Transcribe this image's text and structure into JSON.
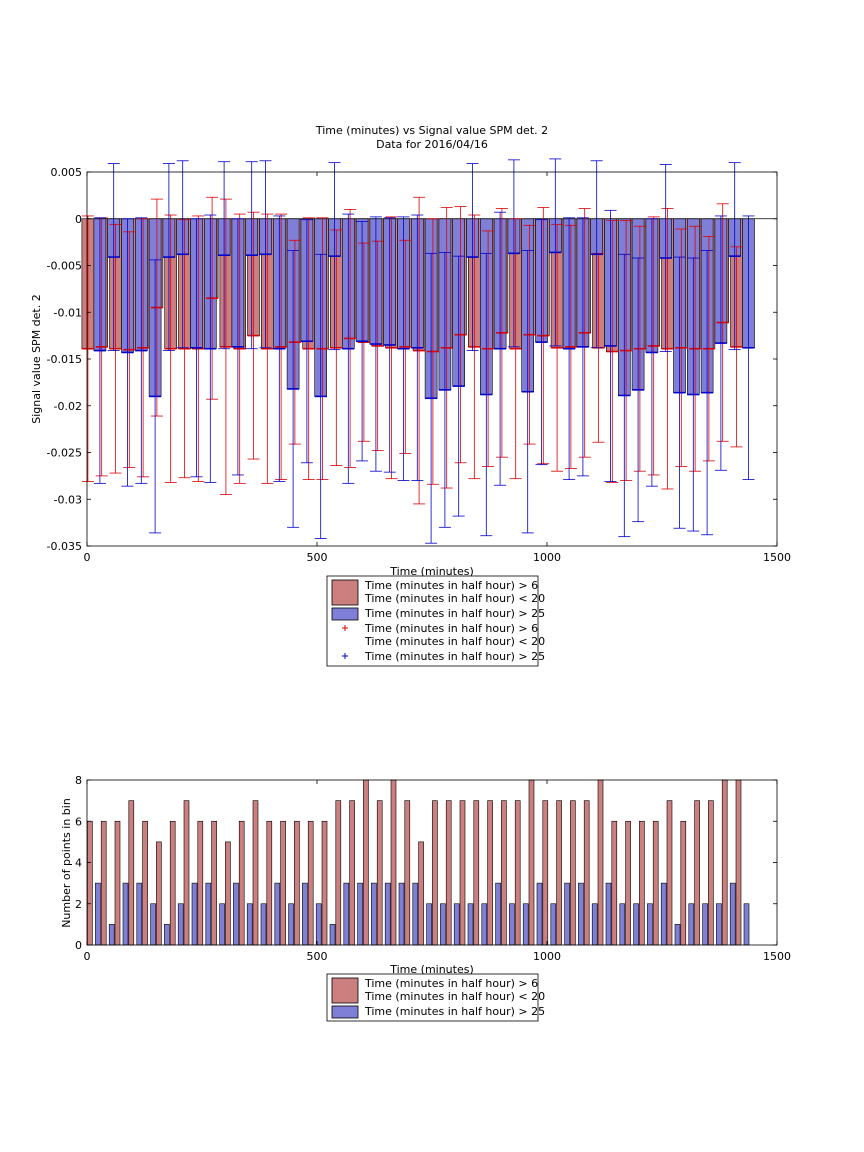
{
  "chart_data": [
    {
      "type": "bar",
      "title": "Time (minutes) vs Signal value SPM det. 2",
      "subtitle": "Data for 2016/04/16",
      "xlabel": "Time (minutes)",
      "ylabel": "Signal value SPM det. 2",
      "xlim": [
        0,
        1500
      ],
      "ylim": [
        -0.035,
        0.005
      ],
      "xticks": [
        0,
        500,
        1000,
        1500
      ],
      "yticks": [
        -0.035,
        -0.03,
        -0.025,
        -0.02,
        -0.015,
        -0.01,
        -0.005,
        0,
        0.005
      ],
      "xtick_labels": [
        "0",
        "500",
        "1000",
        "1500"
      ],
      "ytick_labels": [
        "-0.035",
        "-0.03",
        "-0.025",
        "-0.02",
        "-0.015",
        "-0.01",
        "-0.005",
        "0",
        "0.005"
      ],
      "x": [
        15,
        45,
        75,
        105,
        135,
        165,
        195,
        225,
        255,
        285,
        315,
        345,
        375,
        405,
        435,
        465,
        495,
        525,
        555,
        585,
        615,
        645,
        675,
        705,
        735,
        765,
        795,
        825,
        855,
        885,
        915,
        945,
        975,
        1005,
        1035,
        1065,
        1095,
        1125,
        1155,
        1185,
        1215,
        1245,
        1275,
        1305,
        1335,
        1365,
        1395,
        1425
      ],
      "series": [
        {
          "name": "Time (minutes in half hour) > 6\nTime (minutes in half hour) < 20",
          "color": "#cc7f7f",
          "values": [
            -0.0139,
            -0.0137,
            -0.0139,
            -0.014,
            -0.0138,
            -0.0095,
            -0.0139,
            -0.0139,
            -0.0139,
            -0.0085,
            -0.0137,
            -0.0139,
            -0.0125,
            -0.0139,
            -0.0137,
            -0.0132,
            -0.0139,
            -0.0139,
            -0.0138,
            -0.0128,
            -0.0132,
            -0.0136,
            -0.0138,
            -0.0137,
            -0.0141,
            -0.0142,
            -0.0138,
            -0.0124,
            -0.0137,
            -0.0139,
            -0.0122,
            -0.0139,
            -0.0124,
            -0.0125,
            -0.0138,
            -0.0137,
            -0.0122,
            -0.0138,
            -0.0142,
            -0.0141,
            -0.0139,
            -0.0136,
            -0.0139,
            -0.0138,
            -0.0139,
            -0.0139,
            -0.0111,
            -0.0137
          ],
          "error": [
            0.0142,
            0.0138,
            0.0133,
            0.0126,
            0.0138,
            0.0116,
            0.0143,
            0.0138,
            0.0142,
            0.0108,
            0.0158,
            0.0144,
            0.0132,
            0.0144,
            0.0142,
            0.0109,
            0.014,
            0.014,
            0.0126,
            0.0138,
            0.0106,
            0.0112,
            0.014,
            0.0114,
            0.0164,
            0.0142,
            0.015,
            0.0137,
            0.0141,
            0.0126,
            0.0133,
            0.0139,
            0.0117,
            0.0137,
            0.0132,
            0.013,
            0.0133,
            0.0101,
            0.014,
            0.0139,
            0.0131,
            0.0138,
            0.015,
            0.0127,
            0.0131,
            0.012,
            0.0127,
            0.0107
          ]
        },
        {
          "name": "Time (minutes in half hour) > 25",
          "color": "#7f7fd8",
          "values": [
            -0.0141,
            -0.0041,
            -0.0143,
            -0.0141,
            -0.019,
            -0.0041,
            -0.0038,
            -0.0138,
            -0.0139,
            -0.0039,
            -0.0137,
            -0.0039,
            -0.0038,
            -0.0139,
            -0.0182,
            -0.0131,
            -0.019,
            -0.004,
            -0.0139,
            -0.0131,
            -0.0134,
            -0.0135,
            -0.0139,
            -0.0138,
            -0.0192,
            -0.0183,
            -0.0179,
            -0.0041,
            -0.0188,
            -0.0139,
            -0.0037,
            -0.0185,
            -0.0132,
            -0.0036,
            -0.0139,
            -0.0137,
            -0.0038,
            -0.0136,
            -0.0189,
            -0.0183,
            -0.0143,
            -0.0042,
            -0.0186,
            -0.0188,
            -0.0186,
            -0.0133,
            -0.004,
            -0.0138
          ],
          "error": [
            0.0142,
            0.01,
            0.0143,
            0.0142,
            0.0146,
            0.01,
            0.01,
            0.0138,
            0.0143,
            0.01,
            0.0137,
            0.01,
            0.01,
            0.0142,
            0.0148,
            0.013,
            0.0152,
            0.01,
            0.0144,
            0.0128,
            0.0136,
            0.0136,
            0.0141,
            0.0142,
            0.0155,
            0.0147,
            0.0139,
            0.01,
            0.0151,
            0.0146,
            0.01,
            0.0151,
            0.0131,
            0.01,
            0.014,
            0.0138,
            0.01,
            0.0145,
            0.0151,
            0.0141,
            0.0143,
            0.01,
            0.0145,
            0.0146,
            0.0152,
            0.0136,
            0.01,
            0.0141
          ]
        }
      ],
      "legend": {
        "placement": "bottom",
        "entries": [
          {
            "kind": "bar",
            "color": "#cc7f7f",
            "lines": [
              "Time (minutes in half hour) > 6",
              "Time (minutes in half hour) < 20"
            ]
          },
          {
            "kind": "bar",
            "color": "#7f7fd8",
            "lines": [
              "Time (minutes in half hour) > 25"
            ]
          },
          {
            "kind": "marker",
            "color": "#dd0000",
            "lines": [
              "Time (minutes in half hour) > 6",
              "Time (minutes in half hour) < 20"
            ]
          },
          {
            "kind": "marker",
            "color": "#0000cc",
            "lines": [
              "Time (minutes in half hour) > 25"
            ]
          }
        ]
      }
    },
    {
      "type": "bar",
      "title": "",
      "xlabel": "Time (minutes)",
      "ylabel": "Number of points in bin",
      "xlim": [
        0,
        1500
      ],
      "ylim": [
        0,
        8
      ],
      "xticks": [
        0,
        500,
        1000,
        1500
      ],
      "yticks": [
        0,
        2,
        4,
        6,
        8
      ],
      "xtick_labels": [
        "0",
        "500",
        "1000",
        "1500"
      ],
      "ytick_labels": [
        "0",
        "2",
        "4",
        "6",
        "8"
      ],
      "x": [
        15,
        45,
        75,
        105,
        135,
        165,
        195,
        225,
        255,
        285,
        315,
        345,
        375,
        405,
        435,
        465,
        495,
        525,
        555,
        585,
        615,
        645,
        675,
        705,
        735,
        765,
        795,
        825,
        855,
        885,
        915,
        945,
        975,
        1005,
        1035,
        1065,
        1095,
        1125,
        1155,
        1185,
        1215,
        1245,
        1275,
        1305,
        1335,
        1365,
        1395,
        1425
      ],
      "series": [
        {
          "name": "Time (minutes in half hour) > 6\nTime (minutes in half hour) < 20",
          "color": "#cc7f7f",
          "values": [
            6,
            6,
            6,
            7,
            6,
            5,
            6,
            7,
            6,
            6,
            5,
            6,
            7,
            6,
            6,
            6,
            6,
            6,
            7,
            7,
            8,
            7,
            8,
            7,
            5,
            7,
            7,
            7,
            7,
            7,
            7,
            7,
            8,
            7,
            7,
            7,
            7,
            8,
            6,
            6,
            6,
            6,
            7,
            6,
            7,
            7,
            8,
            8
          ]
        },
        {
          "name": "Time (minutes in half hour) > 25",
          "color": "#7f7fd8",
          "values": [
            3,
            1,
            3,
            3,
            2,
            1,
            2,
            3,
            3,
            2,
            3,
            2,
            2,
            3,
            2,
            3,
            2,
            1,
            3,
            3,
            3,
            3,
            3,
            3,
            2,
            2,
            2,
            2,
            2,
            3,
            2,
            2,
            3,
            2,
            3,
            3,
            2,
            3,
            2,
            2,
            2,
            3,
            1,
            2,
            2,
            2,
            3,
            2
          ]
        }
      ],
      "legend": {
        "placement": "bottom",
        "entries": [
          {
            "kind": "bar",
            "color": "#cc7f7f",
            "lines": [
              "Time (minutes in half hour) > 6",
              "Time (minutes in half hour) < 20"
            ]
          },
          {
            "kind": "bar",
            "color": "#7f7fd8",
            "lines": [
              "Time (minutes in half hour) > 25"
            ]
          }
        ]
      }
    }
  ]
}
